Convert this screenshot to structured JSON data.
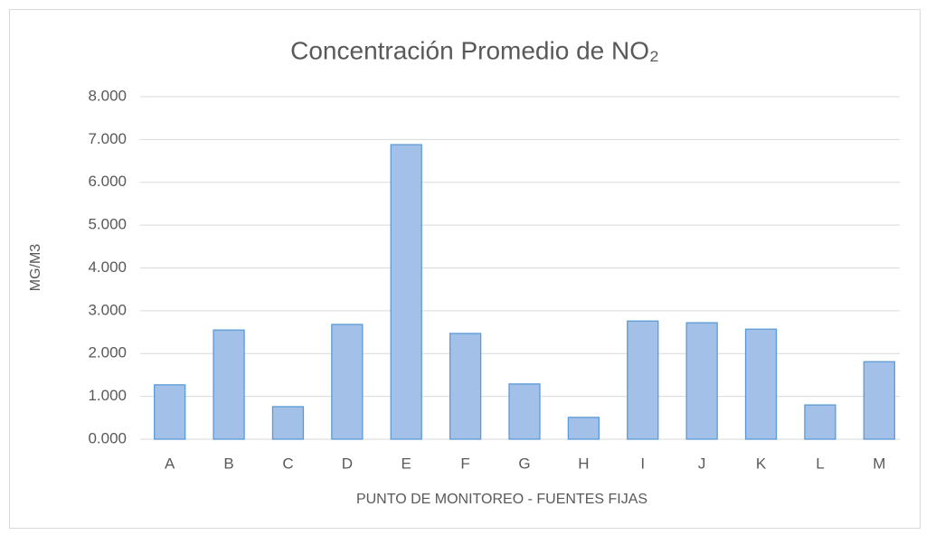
{
  "chart_data": {
    "type": "bar",
    "title": "Concentración Promedio de NO₂",
    "x_label": "PUNTO DE MONITOREO - FUENTES FIJAS",
    "y_label": "MG/M3",
    "categories": [
      "A",
      "B",
      "C",
      "D",
      "E",
      "F",
      "G",
      "H",
      "I",
      "J",
      "K",
      "L",
      "M"
    ],
    "values": [
      1.27,
      2.55,
      0.76,
      2.68,
      6.88,
      2.47,
      1.29,
      0.51,
      2.76,
      2.72,
      2.57,
      0.8,
      1.81
    ],
    "color": "#a3c1e8",
    "edge_color": "#5b9bd5",
    "ylim": [
      0,
      8
    ],
    "yticks": [
      {
        "value": 0,
        "label": "0.000"
      },
      {
        "value": 1,
        "label": "1.000"
      },
      {
        "value": 2,
        "label": "2.000"
      },
      {
        "value": 3,
        "label": "3.000"
      },
      {
        "value": 4,
        "label": "4.000"
      },
      {
        "value": 5,
        "label": "5.000"
      },
      {
        "value": 6,
        "label": "6.000"
      },
      {
        "value": 7,
        "label": "7.000"
      },
      {
        "value": 8,
        "label": "8.000"
      }
    ],
    "grid": true
  }
}
